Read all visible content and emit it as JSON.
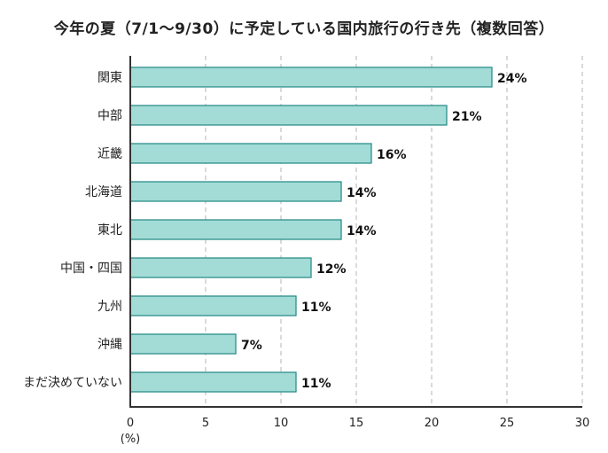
{
  "chart_data": {
    "type": "bar",
    "orientation": "horizontal",
    "title": "今年の夏（7/1～9/30）に予定している国内旅行の行き先（複数回答）",
    "categories": [
      "関東",
      "中部",
      "近畿",
      "北海道",
      "東北",
      "中国・四国",
      "九州",
      "沖縄",
      "まだ決めていない"
    ],
    "values": [
      24,
      21,
      16,
      14,
      14,
      12,
      11,
      7,
      11
    ],
    "value_labels": [
      "24%",
      "21%",
      "16%",
      "14%",
      "14%",
      "12%",
      "11%",
      "7%",
      "11%"
    ],
    "xlim": [
      0,
      30
    ],
    "xticks": [
      0,
      5,
      10,
      15,
      20,
      25,
      30
    ],
    "xtick_labels": [
      "0",
      "5",
      "10",
      "15",
      "20",
      "25",
      "30"
    ],
    "unit_label": "(%)",
    "grid": "vertical dashed",
    "colors": {
      "bar_fill": "#a3dcd6",
      "bar_stroke": "#2e8f8b",
      "grid": "#b5b5b5",
      "axis": "#333333"
    }
  }
}
